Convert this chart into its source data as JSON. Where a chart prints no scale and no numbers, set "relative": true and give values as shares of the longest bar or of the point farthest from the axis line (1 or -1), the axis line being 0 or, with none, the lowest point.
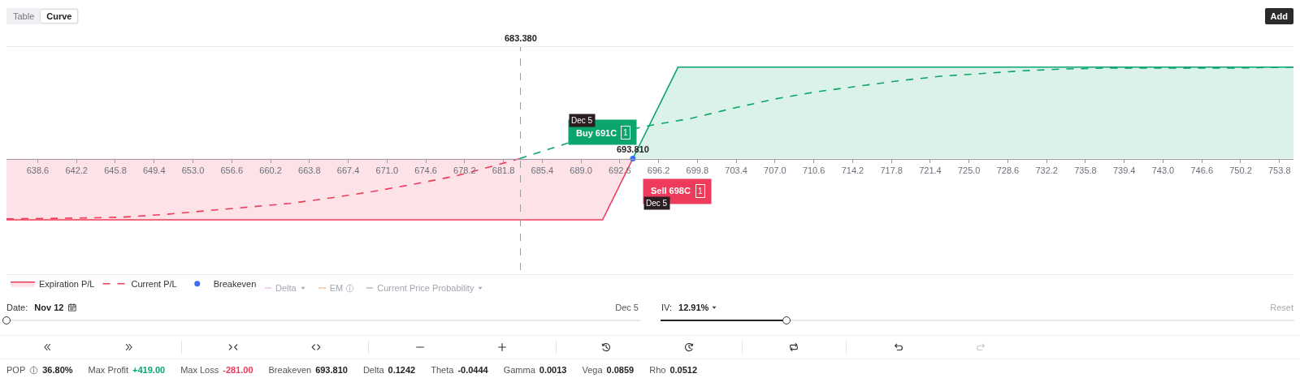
{
  "chart_data": {
    "type": "line",
    "relative": true,
    "xlim": [
      635.7,
      755.1
    ],
    "xticks": [
      638.6,
      642.2,
      645.8,
      649.4,
      {
        "value": 653,
        "label": "653.0"
      },
      656.6,
      660.2,
      663.8,
      667.4,
      {
        "value": 671,
        "label": "671.0"
      },
      674.6,
      678.2,
      681.8,
      685.4,
      {
        "value": 689,
        "label": "689.0"
      },
      692.6,
      696.2,
      699.8,
      703.4,
      {
        "value": 707,
        "label": "707.0"
      },
      710.6,
      714.2,
      717.8,
      721.4,
      {
        "value": 725,
        "label": "725.0"
      },
      728.6,
      732.2,
      735.8,
      739.4,
      {
        "value": 743,
        "label": "743.0"
      },
      746.6,
      750.2,
      753.8
    ],
    "series": [
      {
        "name": "Expiration P/L",
        "type": "area",
        "color": "#ef3b5b",
        "x": [
          635.7,
          691,
          693.81
        ],
        "values": [
          -0.67,
          -0.67,
          0
        ]
      },
      {
        "type": "area",
        "color": "#0ba56e",
        "x": [
          693.81,
          698,
          755.1
        ],
        "values": [
          0,
          1,
          1
        ]
      },
      {
        "name": "Current P/L",
        "line_style": "dashed",
        "color": "#ef3b5b",
        "x": [
          635.7,
          642.8,
          646.6,
          650.5,
          654.3,
          658.2,
          662.0,
          665.8,
          669.7,
          673.5,
          677.4,
          679.3,
          681.2,
          683.3
        ],
        "values": [
          -0.66,
          -0.65,
          -0.64,
          -0.61,
          -0.57,
          -0.53,
          -0.49,
          -0.43,
          -0.36,
          -0.28,
          -0.19,
          -0.13,
          -0.07,
          0
        ]
      },
      {
        "line_style": "dashed",
        "color": "#0ba56e",
        "x": [
          683.3,
          687.8,
          695.3,
          699.2,
          703.1,
          706.9,
          710.8,
          714.6,
          718.4,
          722.3,
          726.1,
          730.0,
          733.8,
          737.7,
          741.5,
          745.4,
          749.2,
          755.1
        ],
        "values": [
          0,
          0.17,
          0.36,
          0.44,
          0.55,
          0.65,
          0.73,
          0.79,
          0.85,
          0.9,
          0.93,
          0.96,
          0.98,
          0.99,
          0.99,
          0.99,
          0.99,
          1.0
        ]
      },
      {
        "name": "Breakeven",
        "type": "scatter",
        "marker": "circle",
        "color": "#3d6df5",
        "x": [
          693.81
        ],
        "values": [
          0
        ]
      }
    ],
    "ref_lines": [
      {
        "axis": "x",
        "value": 683.38,
        "label": "683.380",
        "color": "#9a9aa2",
        "line_style": "dashed"
      }
    ],
    "legend": "bottom left",
    "annotations": [
      "Table",
      "Curve",
      "Add",
      "Delta",
      "EM",
      "Current Price Probability",
      "Date:",
      "Nov 12",
      "Dec 5",
      "IV:",
      "12.91%",
      "Reset",
      "POP",
      "36.80%",
      "Max Profit",
      "+419.00",
      "Max Loss",
      "-281.00",
      "Breakeven",
      "693.810",
      "Delta",
      "0.1242",
      "Theta",
      "-0.0444",
      "Gamma",
      "0.0013",
      "Vega",
      "0.0859",
      "Rho",
      "0.0512",
      "Buy 691C",
      "1",
      "Dec 5",
      "Sell 698C",
      "1",
      "Dec 5",
      {
        "text": "693.810",
        "x": 693.81,
        "y": 0
      }
    ]
  }
}
